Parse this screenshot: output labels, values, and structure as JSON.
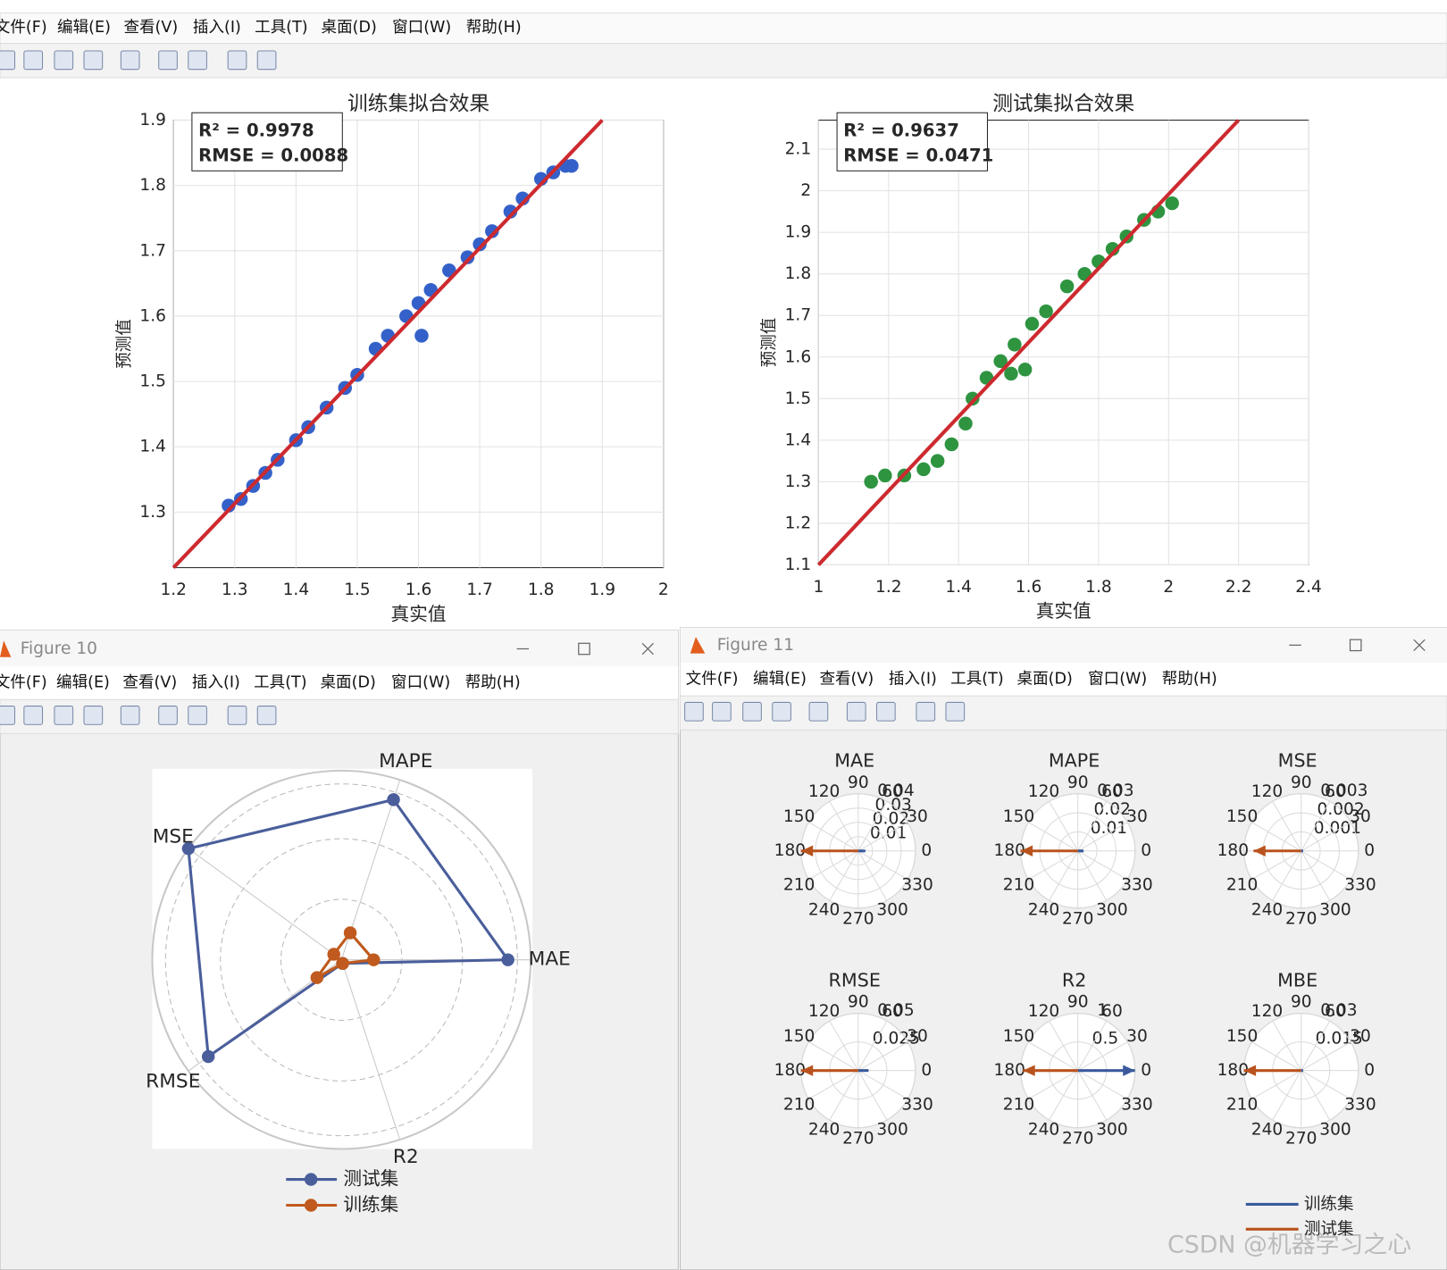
{
  "windows": [
    {
      "menu": [
        "文件(F)",
        "编辑(E)",
        "查看(V)",
        "插入(I)",
        "工具(T)",
        "桌面(D)",
        "窗口(W)",
        "帮助(H)"
      ]
    },
    {
      "title": "Figure 10",
      "menu": [
        "文件(F)",
        "编辑(E)",
        "查看(V)",
        "插入(I)",
        "工具(T)",
        "桌面(D)",
        "窗口(W)",
        "帮助(H)"
      ]
    },
    {
      "title": "Figure 11",
      "menu": [
        "文件(F)",
        "编辑(E)",
        "查看(V)",
        "插入(I)",
        "工具(T)",
        "桌面(D)",
        "窗口(W)",
        "帮助(H)"
      ]
    }
  ],
  "chart_data": [
    {
      "type": "scatter",
      "title": "训练集拟合效果",
      "x_label": "真实值",
      "y_label": "预测值",
      "annotations": [
        "R² = 0.9978",
        "RMSE = 0.0088"
      ],
      "xlim": [
        1.2,
        2
      ],
      "xticks": [
        1.2,
        1.3,
        1.4,
        1.5,
        1.6,
        1.7,
        1.8,
        1.9,
        2
      ],
      "ylim": [
        1.215,
        1.9
      ],
      "yticks": [
        1.3,
        1.4,
        1.5,
        1.6,
        1.7,
        1.8,
        1.9
      ],
      "grid": true,
      "series": [
        {
          "color": "#3461c9",
          "x": [
            1.29,
            1.31,
            1.33,
            1.35,
            1.37,
            1.4,
            1.42,
            1.45,
            1.48,
            1.5,
            1.53,
            1.55,
            1.58,
            1.6,
            1.62,
            1.65,
            1.68,
            1.7,
            1.72,
            1.75,
            1.77,
            1.8,
            1.82,
            1.84,
            1.85,
            1.605
          ],
          "values": [
            1.31,
            1.32,
            1.34,
            1.36,
            1.38,
            1.41,
            1.43,
            1.46,
            1.49,
            1.51,
            1.55,
            1.57,
            1.6,
            1.62,
            1.64,
            1.67,
            1.69,
            1.71,
            1.73,
            1.76,
            1.78,
            1.81,
            1.82,
            1.83,
            1.83,
            1.57
          ]
        }
      ],
      "fit_line": {
        "color": "#cd2a2f",
        "x": [
          1.2,
          1.9
        ],
        "values": [
          1.215,
          1.9
        ]
      }
    },
    {
      "type": "scatter",
      "title": "测试集拟合效果",
      "x_label": "真实值",
      "y_label": "预测值",
      "annotations": [
        "R² = 0.9637",
        "RMSE = 0.0471"
      ],
      "xlim": [
        1,
        2.4
      ],
      "xticks": [
        1,
        1.2,
        1.4,
        1.6,
        1.8,
        2,
        2.2,
        2.4
      ],
      "ylim": [
        1.1,
        2.17
      ],
      "yticks": [
        1.1,
        1.2,
        1.3,
        1.4,
        1.5,
        1.6,
        1.7,
        1.8,
        1.9,
        2,
        2.1
      ],
      "grid": true,
      "series": [
        {
          "color": "#2e9440",
          "x": [
            1.15,
            1.19,
            1.245,
            1.3,
            1.34,
            1.38,
            1.42,
            1.44,
            1.48,
            1.52,
            1.55,
            1.59,
            1.56,
            1.61,
            1.65,
            1.71,
            1.76,
            1.8,
            1.84,
            1.88,
            1.93,
            1.97,
            2.01
          ],
          "values": [
            1.3,
            1.315,
            1.315,
            1.33,
            1.35,
            1.39,
            1.44,
            1.5,
            1.55,
            1.59,
            1.56,
            1.57,
            1.63,
            1.68,
            1.71,
            1.77,
            1.8,
            1.83,
            1.86,
            1.89,
            1.93,
            1.95,
            1.97
          ]
        }
      ],
      "fit_line": {
        "color": "#cd2a2f",
        "x": [
          1,
          2.2
        ],
        "values": [
          1.1,
          2.17
        ]
      }
    },
    {
      "type": "radar",
      "categories": [
        "MAE",
        "MAPE",
        "MSE",
        "RMSE",
        "R2"
      ],
      "rlim": [
        0,
        1
      ],
      "series": [
        {
          "name": "测试集",
          "color": "#4a5e9b",
          "values": [
            0.88,
            0.89,
            1.0,
            0.87,
            0.02
          ]
        },
        {
          "name": "训练集",
          "color": "#c05a1e",
          "values": [
            0.17,
            0.15,
            0.05,
            0.16,
            0.02
          ]
        }
      ]
    },
    {
      "type": "polar",
      "thetaticks": [
        0,
        30,
        60,
        90,
        120,
        150,
        180,
        210,
        240,
        270,
        300,
        330
      ],
      "subplots": [
        {
          "title": "MAE",
          "rlim": [
            0,
            0.04
          ],
          "rticks": [
            0.01,
            0.02,
            0.03,
            0.04
          ]
        },
        {
          "title": "MAPE",
          "rlim": [
            0,
            0.03
          ],
          "rticks": [
            0.01,
            0.02,
            0.03
          ]
        },
        {
          "title": "MSE",
          "rlim": [
            0,
            0.003
          ],
          "rticks": [
            0.001,
            0.002,
            0.003
          ]
        },
        {
          "title": "RMSE",
          "rlim": [
            0,
            0.05
          ],
          "rticks": [
            0.025,
            0.05
          ]
        },
        {
          "title": "R2",
          "rlim": [
            0,
            1
          ],
          "rticks": [
            0.5,
            1
          ]
        },
        {
          "title": "MBE",
          "rlim": [
            0,
            0.03
          ],
          "rticks": [
            0.015,
            0.03
          ]
        }
      ],
      "series": [
        {
          "name": "训练集",
          "color": "#3a5a9c",
          "values": [
            0.005,
            0.003,
            0.0001,
            0.009,
            0.998,
            0.001
          ]
        },
        {
          "name": "测试集",
          "color": "#b9531d",
          "values": [
            -0.04,
            -0.03,
            -0.0025,
            -0.05,
            -0.96,
            -0.03
          ]
        }
      ]
    }
  ],
  "watermark": "CSDN @机器学习之心"
}
